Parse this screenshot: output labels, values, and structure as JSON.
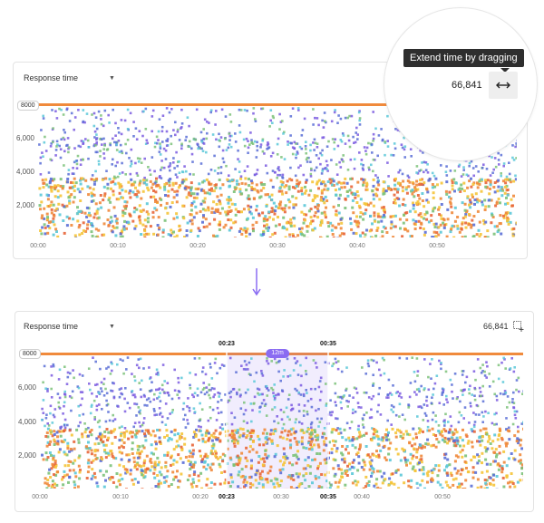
{
  "top_panel": {
    "metric_dropdown": "Response time",
    "y_max": "8000",
    "y_ticks": [
      "6,000",
      "4,000",
      "2,000"
    ],
    "x_ticks": [
      "00:00",
      "00:10",
      "00:20",
      "00:30",
      "00:40",
      "00:50"
    ],
    "count": "66,841"
  },
  "magnifier": {
    "tooltip": "Extend time by dragging",
    "count": "66,841",
    "button_icon": "horizontal-double-arrow-icon"
  },
  "bottom_panel": {
    "metric_dropdown": "Response time",
    "count": "66,841",
    "select_icon": "box-select-icon",
    "y_max": "8000",
    "y_ticks": [
      "6,000",
      "4,000",
      "2,000"
    ],
    "x_ticks": [
      "00:00",
      "00:10",
      "00:20",
      "00:30",
      "00:40",
      "00:50"
    ],
    "selection": {
      "start": "00:23",
      "end": "00:35",
      "duration": "12m"
    }
  },
  "colors": {
    "blue": "#5b6fd6",
    "purple": "#7b5ce0",
    "green": "#7cc27a",
    "cyan": "#5bc8d8",
    "yellow": "#f5c43a",
    "orange": "#f08a3c",
    "red": "#e8663a",
    "selection": "#8a6cf2"
  }
}
